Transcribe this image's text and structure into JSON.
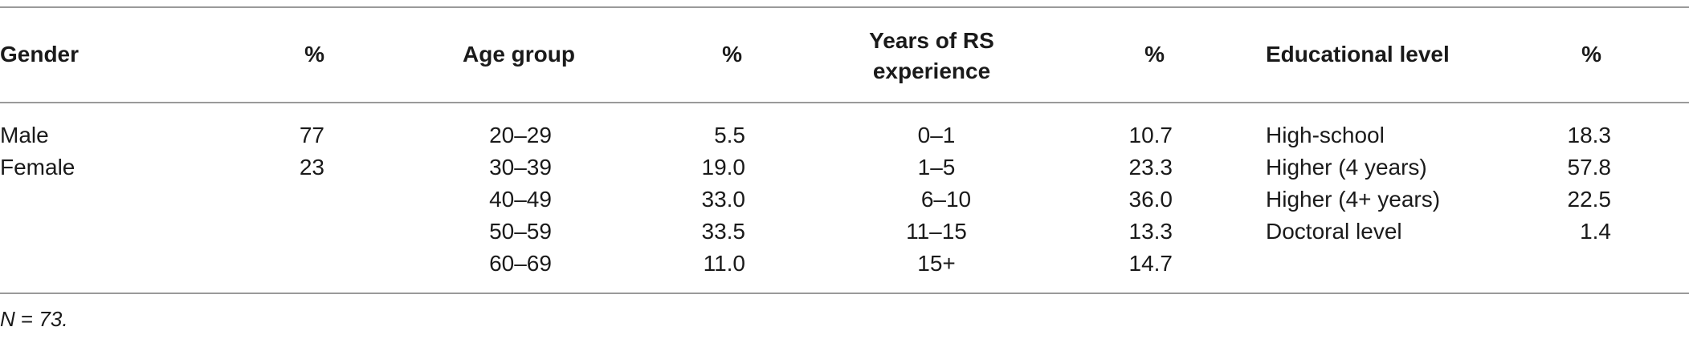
{
  "table": {
    "headers": {
      "gender": "Gender",
      "gender_pct": "%",
      "age_group": "Age group",
      "age_pct": "%",
      "rs_exp_line1": "Years of RS",
      "rs_exp_line2": "experience",
      "rs_pct": "%",
      "education": "Educational level",
      "edu_pct": "%"
    },
    "gender": [
      {
        "label": "Male",
        "pct": "77"
      },
      {
        "label": "Female",
        "pct": "23"
      }
    ],
    "age": [
      {
        "label": "20–29",
        "pct": "5.5"
      },
      {
        "label": "30–39",
        "pct": "19.0"
      },
      {
        "label": "40–49",
        "pct": "33.0"
      },
      {
        "label": "50–59",
        "pct": "33.5"
      },
      {
        "label": "60–69",
        "pct": "11.0"
      }
    ],
    "rs_experience": [
      {
        "label": "0–1",
        "pct": "10.7"
      },
      {
        "label": "1–5",
        "pct": "23.3"
      },
      {
        "label": "6–10",
        "pct": "36.0"
      },
      {
        "label": "11–15",
        "pct": "13.3"
      },
      {
        "label": "15+",
        "pct": "14.7"
      }
    ],
    "education": [
      {
        "label": "High-school",
        "pct": "18.3"
      },
      {
        "label": "Higher (4 years)",
        "pct": "57.8"
      },
      {
        "label": "Higher (4+ years)",
        "pct": "22.5"
      },
      {
        "label": "Doctoral level",
        "pct": "1.4"
      }
    ]
  },
  "note": {
    "variable": "N",
    "equals": " = ",
    "value": "73."
  }
}
